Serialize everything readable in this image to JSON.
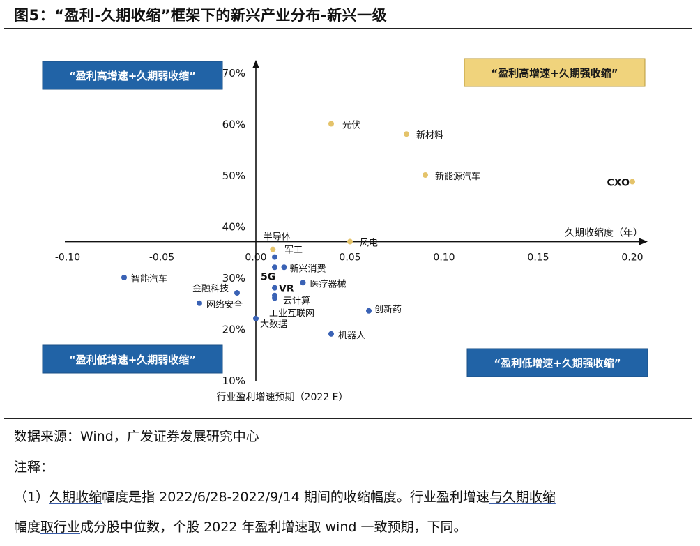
{
  "title": "图5：“盈利-久期收缩”框架下的新兴产业分布-新兴一级",
  "source": "数据来源：Wind，广发证券发展研究中心",
  "notes_heading": "注释：",
  "note_line1": {
    "prefix": "（1）",
    "term": "久期收缩",
    "mid": "幅度是指 2022/6/28-2022/9/14 期间的收缩幅度。行业盈利增速",
    "term2": "与久期收缩"
  },
  "note_line2": {
    "pre": "幅度",
    "term": "取行业",
    "rest": "成分股中位数，个股 2022 年盈利增速取 wind 一致预期，下同。"
  },
  "chart_data": {
    "type": "scatter",
    "xlabel": "久期收缩度（年）",
    "ylabel": "行业盈利增速预期（2022 E）",
    "xlim": [
      -0.1,
      0.2
    ],
    "ylim": [
      0.1,
      0.7
    ],
    "x_ticks": [
      -0.1,
      -0.05,
      0.0,
      0.05,
      0.1,
      0.15,
      0.2
    ],
    "x_tick_labels": [
      "-0.10",
      "-0.05",
      "0.00",
      "0.05",
      "0.10",
      "0.15",
      "0.20"
    ],
    "y_ticks": [
      0.1,
      0.2,
      0.3,
      0.4,
      0.5,
      0.6,
      0.7
    ],
    "y_tick_labels": [
      "10%",
      "20%",
      "30%",
      "40%",
      "50%",
      "60%",
      "70%"
    ],
    "x_axis_crosses_y_at": 0.37,
    "colors": {
      "positive": "#e4c36a",
      "negative": "#3a62b5",
      "quadrant_blue": "#2163a6",
      "quadrant_gold": "#f0d37c"
    },
    "points": [
      {
        "label": "光伏",
        "x": 0.04,
        "y": 0.6,
        "group": "positive"
      },
      {
        "label": "新材料",
        "x": 0.08,
        "y": 0.58,
        "group": "positive"
      },
      {
        "label": "新能源汽车",
        "x": 0.09,
        "y": 0.5,
        "group": "positive"
      },
      {
        "label": "CXO",
        "x": 0.2,
        "y": 0.487,
        "group": "positive"
      },
      {
        "label": "风电",
        "x": 0.05,
        "y": 0.37,
        "group": "positive"
      },
      {
        "label": "半导体",
        "x": 0.009,
        "y": 0.355,
        "group": "positive"
      },
      {
        "label": "军工",
        "x": 0.01,
        "y": 0.34,
        "group": "negative"
      },
      {
        "label": "新兴消费",
        "x": 0.015,
        "y": 0.32,
        "group": "negative"
      },
      {
        "label": "5G",
        "x": 0.01,
        "y": 0.32,
        "group": "negative"
      },
      {
        "label": "VR",
        "x": 0.01,
        "y": 0.28,
        "group": "negative"
      },
      {
        "label": "医疗器械",
        "x": 0.025,
        "y": 0.29,
        "group": "negative"
      },
      {
        "label": "云计算",
        "x": 0.01,
        "y": 0.265,
        "group": "negative"
      },
      {
        "label": "工业互联网",
        "x": 0.01,
        "y": 0.26,
        "group": "negative"
      },
      {
        "label": "智能汽车",
        "x": -0.07,
        "y": 0.3,
        "group": "negative"
      },
      {
        "label": "金融科技",
        "x": -0.01,
        "y": 0.27,
        "group": "negative"
      },
      {
        "label": "网络安全",
        "x": -0.03,
        "y": 0.25,
        "group": "negative"
      },
      {
        "label": "大数据",
        "x": 0.0,
        "y": 0.22,
        "group": "negative"
      },
      {
        "label": "创新药",
        "x": 0.06,
        "y": 0.235,
        "group": "negative"
      },
      {
        "label": "机器人",
        "x": 0.04,
        "y": 0.19,
        "group": "negative"
      }
    ],
    "quadrant_labels": [
      {
        "text": "“盈利高增速+久期弱收缩”",
        "style": "blue"
      },
      {
        "text": "“盈利高增速+久期强收缩”",
        "style": "gold"
      },
      {
        "text": "“盈利低增速+久期弱收缩”",
        "style": "blue"
      },
      {
        "text": "“盈利低增速+久期强收缩”",
        "style": "blue"
      }
    ]
  }
}
